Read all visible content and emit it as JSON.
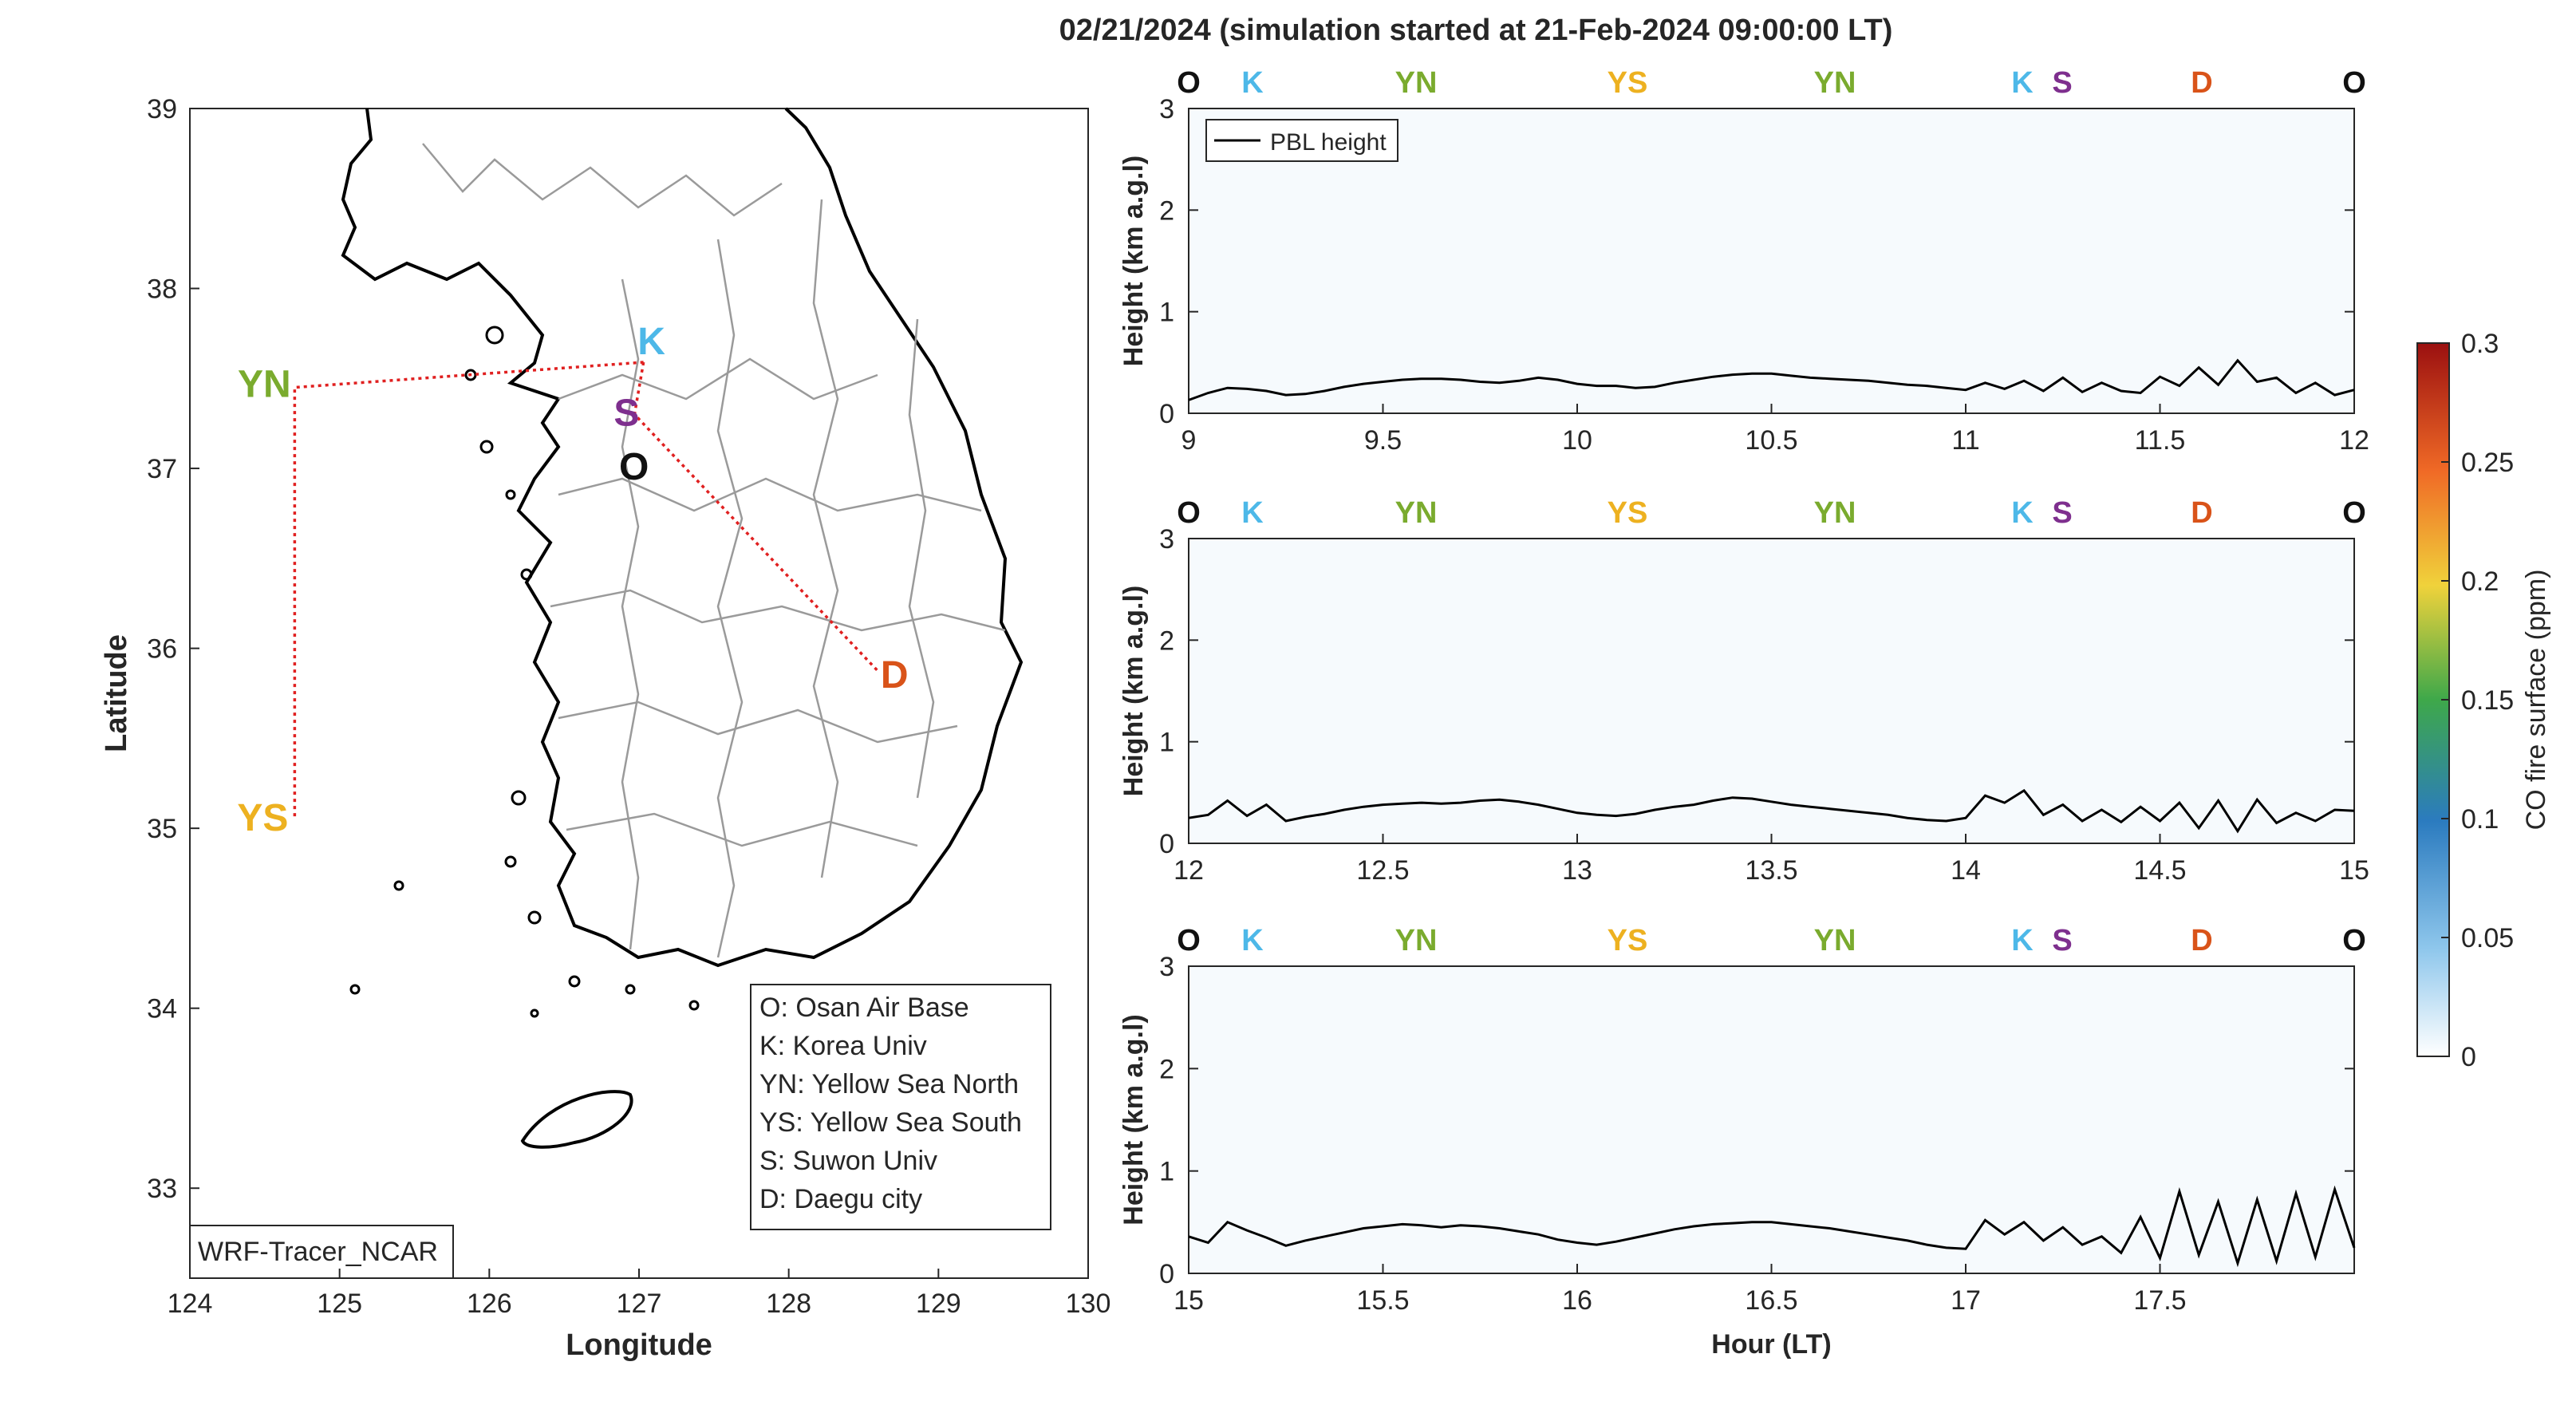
{
  "title": "02/21/2024 (simulation started at 21-Feb-2024 09:00:00 LT)",
  "colors": {
    "O": "#111111",
    "K": "#4db8e8",
    "YN": "#7aab2e",
    "YS": "#edb120",
    "S": "#7e2f8e",
    "D": "#d95319",
    "route": "#e02020",
    "pbl": "#000000"
  },
  "map": {
    "xlabel": "Longitude",
    "ylabel": "Latitude",
    "xticks": [
      "124",
      "125",
      "126",
      "127",
      "128",
      "129",
      "130"
    ],
    "yticks": [
      "39",
      "38",
      "37",
      "36",
      "35",
      "34",
      "33"
    ],
    "xlim": [
      124,
      130
    ],
    "ylim": [
      32.5,
      39
    ],
    "model_label": "WRF-Tracer_NCAR",
    "sites": [
      {
        "code": "K",
        "lon": 127.03,
        "lat": 37.59
      },
      {
        "code": "S",
        "lon": 126.97,
        "lat": 37.3
      },
      {
        "code": "O",
        "lon": 127.03,
        "lat": 37.09
      },
      {
        "code": "YN",
        "lon": 124.7,
        "lat": 37.45
      },
      {
        "code": "YS",
        "lon": 124.7,
        "lat": 35.05
      },
      {
        "code": "D",
        "lon": 128.6,
        "lat": 35.87
      }
    ],
    "legend": [
      "O: Osan Air Base",
      "K: Korea Univ",
      "YN: Yellow Sea North",
      "YS: Yellow Sea South",
      "S: Suwon Univ",
      "D: Daegu city"
    ]
  },
  "panels": {
    "ylabel": "Height (km a.g.l)",
    "xlabel": "Hour (LT)",
    "legend_label": "PBL height",
    "site_sequence": [
      "O",
      "K",
      "YN",
      "YS",
      "YN",
      "K",
      "S",
      "D",
      "O"
    ],
    "yticks": [
      "0",
      "1",
      "2",
      "3"
    ]
  },
  "colorbar": {
    "label": "CO fire surface (ppm)",
    "ticks": [
      "0",
      "0.05",
      "0.1",
      "0.15",
      "0.2",
      "0.25",
      "0.3"
    ],
    "range": [
      0,
      0.3
    ]
  },
  "chart_data": [
    {
      "type": "line",
      "title": "02/21/2024 (simulation started at 21-Feb-2024 09:00:00 LT)",
      "xlabel": "",
      "ylabel": "Height (km a.g.l)",
      "xlim": [
        9,
        12
      ],
      "ylim": [
        0,
        3
      ],
      "xticks": [
        "9",
        "9.5",
        "10",
        "10.5",
        "11",
        "11.5",
        "12"
      ],
      "series": [
        {
          "name": "PBL height",
          "x": [
            9.0,
            9.05,
            9.1,
            9.15,
            9.2,
            9.25,
            9.3,
            9.35,
            9.4,
            9.45,
            9.5,
            9.55,
            9.6,
            9.65,
            9.7,
            9.75,
            9.8,
            9.85,
            9.9,
            9.95,
            10.0,
            10.05,
            10.1,
            10.15,
            10.2,
            10.25,
            10.3,
            10.35,
            10.4,
            10.45,
            10.5,
            10.55,
            10.6,
            10.65,
            10.7,
            10.75,
            10.8,
            10.85,
            10.9,
            10.95,
            11.0,
            11.05,
            11.1,
            11.15,
            11.2,
            11.25,
            11.3,
            11.35,
            11.4,
            11.45,
            11.5,
            11.55,
            11.6,
            11.65,
            11.7,
            11.75,
            11.8,
            11.85,
            11.9,
            11.95,
            12.0
          ],
          "y": [
            0.13,
            0.2,
            0.25,
            0.24,
            0.22,
            0.18,
            0.19,
            0.22,
            0.26,
            0.29,
            0.31,
            0.33,
            0.34,
            0.34,
            0.33,
            0.31,
            0.3,
            0.32,
            0.35,
            0.33,
            0.29,
            0.27,
            0.27,
            0.25,
            0.26,
            0.3,
            0.33,
            0.36,
            0.38,
            0.39,
            0.39,
            0.37,
            0.35,
            0.34,
            0.33,
            0.32,
            0.3,
            0.28,
            0.27,
            0.25,
            0.23,
            0.3,
            0.24,
            0.32,
            0.22,
            0.35,
            0.21,
            0.3,
            0.22,
            0.2,
            0.36,
            0.27,
            0.45,
            0.28,
            0.52,
            0.31,
            0.35,
            0.2,
            0.3,
            0.18,
            0.23
          ]
        }
      ]
    },
    {
      "type": "line",
      "title": "",
      "xlabel": "",
      "ylabel": "Height (km a.g.l)",
      "xlim": [
        12,
        15
      ],
      "ylim": [
        0,
        3
      ],
      "xticks": [
        "12",
        "12.5",
        "13",
        "13.5",
        "14",
        "14.5",
        "15"
      ],
      "series": [
        {
          "name": "PBL height",
          "x": [
            12.0,
            12.05,
            12.1,
            12.15,
            12.2,
            12.25,
            12.3,
            12.35,
            12.4,
            12.45,
            12.5,
            12.55,
            12.6,
            12.65,
            12.7,
            12.75,
            12.8,
            12.85,
            12.9,
            12.95,
            13.0,
            13.05,
            13.1,
            13.15,
            13.2,
            13.25,
            13.3,
            13.35,
            13.4,
            13.45,
            13.5,
            13.55,
            13.6,
            13.65,
            13.7,
            13.75,
            13.8,
            13.85,
            13.9,
            13.95,
            14.0,
            14.05,
            14.1,
            14.15,
            14.2,
            14.25,
            14.3,
            14.35,
            14.4,
            14.45,
            14.5,
            14.55,
            14.6,
            14.65,
            14.7,
            14.75,
            14.8,
            14.85,
            14.9,
            14.95,
            15.0
          ],
          "y": [
            0.25,
            0.28,
            0.42,
            0.27,
            0.38,
            0.22,
            0.26,
            0.29,
            0.33,
            0.36,
            0.38,
            0.39,
            0.4,
            0.39,
            0.4,
            0.42,
            0.43,
            0.41,
            0.38,
            0.34,
            0.3,
            0.28,
            0.27,
            0.29,
            0.33,
            0.36,
            0.38,
            0.42,
            0.45,
            0.44,
            0.41,
            0.38,
            0.36,
            0.34,
            0.32,
            0.3,
            0.28,
            0.25,
            0.23,
            0.22,
            0.25,
            0.47,
            0.4,
            0.52,
            0.28,
            0.38,
            0.22,
            0.33,
            0.21,
            0.36,
            0.22,
            0.4,
            0.15,
            0.42,
            0.12,
            0.43,
            0.2,
            0.3,
            0.22,
            0.33,
            0.32
          ]
        }
      ]
    },
    {
      "type": "line",
      "title": "",
      "xlabel": "Hour (LT)",
      "ylabel": "Height (km a.g.l)",
      "xlim": [
        15,
        18
      ],
      "ylim": [
        0,
        3
      ],
      "xticks": [
        "15",
        "15.5",
        "16",
        "16.5",
        "17",
        "17.5"
      ],
      "series": [
        {
          "name": "PBL height",
          "x": [
            15.0,
            15.05,
            15.1,
            15.15,
            15.2,
            15.25,
            15.3,
            15.35,
            15.4,
            15.45,
            15.5,
            15.55,
            15.6,
            15.65,
            15.7,
            15.75,
            15.8,
            15.85,
            15.9,
            15.95,
            16.0,
            16.05,
            16.1,
            16.15,
            16.2,
            16.25,
            16.3,
            16.35,
            16.4,
            16.45,
            16.5,
            16.55,
            16.6,
            16.65,
            16.7,
            16.75,
            16.8,
            16.85,
            16.9,
            16.95,
            17.0,
            17.05,
            17.1,
            17.15,
            17.2,
            17.25,
            17.3,
            17.35,
            17.4,
            17.45,
            17.5,
            17.55,
            17.6,
            17.65,
            17.7,
            17.75,
            17.8,
            17.85,
            17.9,
            17.95,
            18.0
          ],
          "y": [
            0.36,
            0.3,
            0.5,
            0.42,
            0.35,
            0.27,
            0.32,
            0.36,
            0.4,
            0.44,
            0.46,
            0.48,
            0.47,
            0.45,
            0.47,
            0.46,
            0.44,
            0.41,
            0.38,
            0.33,
            0.3,
            0.28,
            0.31,
            0.35,
            0.39,
            0.43,
            0.46,
            0.48,
            0.49,
            0.5,
            0.5,
            0.48,
            0.46,
            0.44,
            0.41,
            0.38,
            0.35,
            0.32,
            0.28,
            0.25,
            0.24,
            0.52,
            0.38,
            0.5,
            0.32,
            0.45,
            0.28,
            0.36,
            0.2,
            0.55,
            0.15,
            0.8,
            0.18,
            0.7,
            0.1,
            0.72,
            0.12,
            0.78,
            0.16,
            0.82,
            0.25
          ]
        }
      ]
    }
  ]
}
